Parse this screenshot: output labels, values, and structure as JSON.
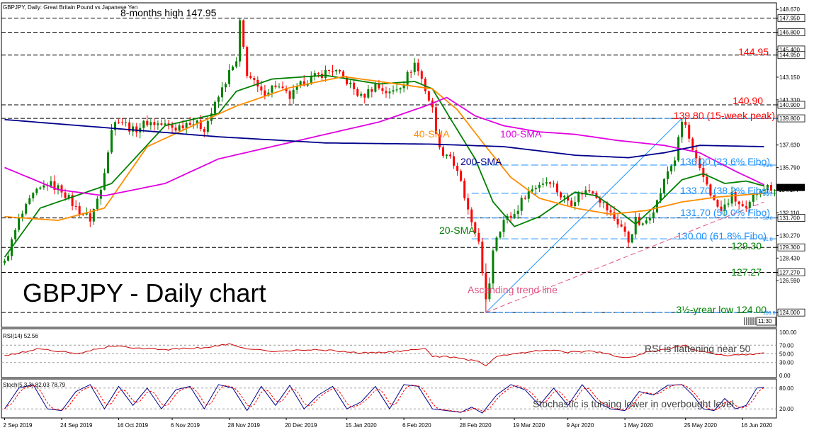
{
  "chart_data": {
    "type": "candlestick",
    "title": "GBPJPY, Daily:  Great Britain Pound vs Japanese Yen",
    "main_label": "GBPJPY - Daily chart",
    "y_range": [
      122.8,
      149.2
    ],
    "y_ticks": [
      148.67,
      147.95,
      146.8,
      145.4,
      144.95,
      143.15,
      141.31,
      140.9,
      139.8,
      137.63,
      135.79,
      134.177,
      132.11,
      131.7,
      130.27,
      129.3,
      128.43,
      127.27,
      126.59,
      124.0
    ],
    "y_tick_labels": [
      "148.670",
      "147.950",
      "146.800",
      "145.400",
      "144.950",
      "143.150",
      "141.310",
      "140.900",
      "139.800",
      "137.630",
      "135.790",
      "134.177",
      "132.110",
      "131.700",
      "130.270",
      "129.300",
      "128.430",
      "127.270",
      "126.590",
      "124.000"
    ],
    "price_box_label": "134.177",
    "x_labels": [
      "2 Sep 2019",
      "24 Sep 2019",
      "16 Oct 2019",
      "6 Nov 2019",
      "28 Nov 2019",
      "20 Dec 2019",
      "15 Jan 2020",
      "6 Feb 2020",
      "28 Feb 2020",
      "19 Mar 2020",
      "9 Apr 2020",
      "1 May 2020",
      "25 May 2020",
      "16 Jun 2020"
    ],
    "x_label_bars": [
      0,
      16,
      32,
      47,
      63,
      79,
      96,
      112,
      128,
      143,
      158,
      174,
      191,
      207
    ],
    "bar_count": 217,
    "anchors": [
      [
        0,
        128.0
      ],
      [
        4,
        131.5
      ],
      [
        8,
        133.5
      ],
      [
        12,
        134.5
      ],
      [
        16,
        134.0
      ],
      [
        20,
        132.5
      ],
      [
        24,
        131.6
      ],
      [
        27,
        134.0
      ],
      [
        30,
        139.0
      ],
      [
        32,
        139.8
      ],
      [
        36,
        138.8
      ],
      [
        40,
        139.5
      ],
      [
        44,
        139.3
      ],
      [
        48,
        139.0
      ],
      [
        52,
        139.6
      ],
      [
        56,
        139.0
      ],
      [
        60,
        141.5
      ],
      [
        63,
        143.5
      ],
      [
        65,
        144.3
      ],
      [
        66,
        147.5
      ],
      [
        68,
        143.5
      ],
      [
        72,
        141.8
      ],
      [
        76,
        142.5
      ],
      [
        80,
        141.5
      ],
      [
        84,
        142.8
      ],
      [
        88,
        143.3
      ],
      [
        92,
        143.8
      ],
      [
        96,
        142.8
      ],
      [
        100,
        141.5
      ],
      [
        104,
        142.5
      ],
      [
        108,
        141.8
      ],
      [
        112,
        142.8
      ],
      [
        115,
        144.3
      ],
      [
        117,
        143.0
      ],
      [
        120,
        140.5
      ],
      [
        122,
        137.2
      ],
      [
        125,
        136.8
      ],
      [
        128,
        134.5
      ],
      [
        131,
        131.0
      ],
      [
        133,
        130.0
      ],
      [
        134,
        127.0
      ],
      [
        135,
        124.8
      ],
      [
        136,
        126.5
      ],
      [
        137,
        129.2
      ],
      [
        138,
        130.3
      ],
      [
        140,
        131.5
      ],
      [
        143,
        132.0
      ],
      [
        146,
        133.6
      ],
      [
        150,
        134.5
      ],
      [
        153,
        134.8
      ],
      [
        156,
        133.5
      ],
      [
        159,
        133.0
      ],
      [
        162,
        133.8
      ],
      [
        165,
        134.0
      ],
      [
        168,
        132.8
      ],
      [
        170,
        132.0
      ],
      [
        173,
        131.0
      ],
      [
        175,
        129.8
      ],
      [
        177,
        131.5
      ],
      [
        179,
        131.0
      ],
      [
        181,
        132.0
      ],
      [
        183,
        133.0
      ],
      [
        186,
        135.5
      ],
      [
        188,
        136.5
      ],
      [
        190,
        139.5
      ],
      [
        191,
        139.2
      ],
      [
        193,
        137.0
      ],
      [
        195,
        135.5
      ],
      [
        197,
        134.5
      ],
      [
        199,
        133.0
      ],
      [
        201,
        132.2
      ],
      [
        204,
        133.5
      ],
      [
        206,
        132.8
      ],
      [
        208,
        132.2
      ],
      [
        210,
        133.4
      ],
      [
        212,
        134.2
      ],
      [
        213,
        134.2
      ]
    ],
    "series": [
      {
        "name": "20-SMA",
        "color": "#008000",
        "anchors": [
          [
            0,
            128.5
          ],
          [
            10,
            132.5
          ],
          [
            20,
            133.5
          ],
          [
            30,
            134.5
          ],
          [
            45,
            139.2
          ],
          [
            60,
            140.2
          ],
          [
            65,
            142.0
          ],
          [
            75,
            143.0
          ],
          [
            90,
            143.3
          ],
          [
            105,
            142.6
          ],
          [
            115,
            142.8
          ],
          [
            120,
            142.2
          ],
          [
            125,
            139.8
          ],
          [
            132,
            136.5
          ],
          [
            137,
            133.0
          ],
          [
            143,
            131.0
          ],
          [
            150,
            131.8
          ],
          [
            160,
            133.8
          ],
          [
            166,
            133.5
          ],
          [
            172,
            132.3
          ],
          [
            177,
            131.2
          ],
          [
            183,
            132.8
          ],
          [
            190,
            134.8
          ],
          [
            196,
            135.3
          ],
          [
            202,
            134.5
          ],
          [
            208,
            134.7
          ],
          [
            213,
            134.3
          ]
        ]
      },
      {
        "name": "40-SMA",
        "color": "#ff8c00",
        "anchors": [
          [
            0,
            131.8
          ],
          [
            15,
            131.5
          ],
          [
            28,
            132.5
          ],
          [
            40,
            137.5
          ],
          [
            55,
            139.5
          ],
          [
            65,
            140.8
          ],
          [
            80,
            142.3
          ],
          [
            95,
            143.2
          ],
          [
            110,
            142.6
          ],
          [
            120,
            142.2
          ],
          [
            127,
            140.5
          ],
          [
            135,
            137.5
          ],
          [
            142,
            135.0
          ],
          [
            150,
            133.3
          ],
          [
            160,
            132.5
          ],
          [
            170,
            132.0
          ],
          [
            180,
            132.3
          ],
          [
            190,
            133.0
          ],
          [
            200,
            133.4
          ],
          [
            213,
            133.7
          ]
        ]
      },
      {
        "name": "100-SMA",
        "color": "#e000e0",
        "anchors": [
          [
            0,
            135.8
          ],
          [
            15,
            134.0
          ],
          [
            28,
            133.5
          ],
          [
            45,
            134.5
          ],
          [
            60,
            136.5
          ],
          [
            75,
            137.5
          ],
          [
            90,
            138.5
          ],
          [
            105,
            139.5
          ],
          [
            118,
            140.8
          ],
          [
            124,
            141.5
          ],
          [
            132,
            140.0
          ],
          [
            140,
            139.2
          ],
          [
            150,
            138.7
          ],
          [
            160,
            138.5
          ],
          [
            172,
            138.0
          ],
          [
            185,
            137.6
          ],
          [
            195,
            137.0
          ],
          [
            205,
            135.5
          ],
          [
            213,
            134.4
          ]
        ]
      },
      {
        "name": "200-SMA",
        "color": "#00008b",
        "anchors": [
          [
            0,
            139.7
          ],
          [
            30,
            139.0
          ],
          [
            60,
            138.3
          ],
          [
            90,
            137.8
          ],
          [
            120,
            137.7
          ],
          [
            140,
            137.5
          ],
          [
            160,
            136.8
          ],
          [
            175,
            136.6
          ],
          [
            185,
            137.0
          ],
          [
            195,
            137.6
          ],
          [
            213,
            137.5
          ]
        ]
      }
    ],
    "annotations": [
      {
        "text": "8-months high 147.95",
        "color": "#000000"
      },
      {
        "text": "144.95",
        "color": "#ff0000"
      },
      {
        "text": "140.90",
        "color": "#ff0000"
      },
      {
        "text": "139.80 (15-week peak)",
        "color": "#ff0000"
      },
      {
        "text": "136.00 (23.6% Fibo)",
        "color": "#1e90ff"
      },
      {
        "text": "133.70 (38.2% Fibo)",
        "color": "#1e90ff"
      },
      {
        "text": "131.70 (50.0% Fibo)",
        "color": "#1e90ff"
      },
      {
        "text": "130.00 (61.8% Fibo)",
        "color": "#1e90ff"
      },
      {
        "text": "129.30",
        "color": "#008000"
      },
      {
        "text": "127.27",
        "color": "#008000"
      },
      {
        "text": "3½-yrear low 124.00",
        "color": "#008000"
      },
      {
        "text": "40-SMA",
        "color": "#ff8c00"
      },
      {
        "text": "100-SMA",
        "color": "#e000e0"
      },
      {
        "text": "200-SMA",
        "color": "#00008b"
      },
      {
        "text": "20-SMA",
        "color": "#008000"
      },
      {
        "text": "Ascending trend line",
        "color": "#e05080"
      }
    ],
    "fibo_small_labels": [
      "23.6",
      "38.2",
      "50.0",
      "61.8",
      "100.0"
    ],
    "time_box": "11:30",
    "rsi": {
      "label": "RSI(14) 52.56",
      "y_ticks": [
        "100.00",
        "70.00",
        "50.00",
        "30.00",
        "0.00"
      ],
      "annotation": "RSI is flattening near 50",
      "color": "#cc0000",
      "anchors": [
        [
          0,
          45
        ],
        [
          10,
          62
        ],
        [
          20,
          50
        ],
        [
          30,
          68
        ],
        [
          45,
          60
        ],
        [
          55,
          64
        ],
        [
          63,
          72
        ],
        [
          67,
          64
        ],
        [
          75,
          55
        ],
        [
          88,
          60
        ],
        [
          100,
          52
        ],
        [
          112,
          56
        ],
        [
          118,
          63
        ],
        [
          120,
          45
        ],
        [
          128,
          40
        ],
        [
          133,
          32
        ],
        [
          135,
          24
        ],
        [
          138,
          44
        ],
        [
          145,
          52
        ],
        [
          152,
          60
        ],
        [
          158,
          54
        ],
        [
          165,
          56
        ],
        [
          170,
          48
        ],
        [
          175,
          40
        ],
        [
          180,
          54
        ],
        [
          186,
          62
        ],
        [
          191,
          70
        ],
        [
          193,
          58
        ],
        [
          198,
          52
        ],
        [
          203,
          45
        ],
        [
          208,
          48
        ],
        [
          213,
          53
        ]
      ]
    },
    "stoch": {
      "label": "Stoch(5,3,3) 82.03 78.79",
      "y_ticks": [
        "80.00",
        "20.00"
      ],
      "annotation": "Stochastic is turning lower in overbought level",
      "k_color": "#00008b",
      "d_color": "#ff0000",
      "anchors": [
        [
          0,
          20
        ],
        [
          4,
          80
        ],
        [
          8,
          90
        ],
        [
          12,
          20
        ],
        [
          16,
          15
        ],
        [
          20,
          70
        ],
        [
          24,
          90
        ],
        [
          28,
          20
        ],
        [
          32,
          85
        ],
        [
          36,
          30
        ],
        [
          40,
          80
        ],
        [
          44,
          20
        ],
        [
          48,
          75
        ],
        [
          52,
          85
        ],
        [
          56,
          20
        ],
        [
          60,
          90
        ],
        [
          64,
          80
        ],
        [
          68,
          15
        ],
        [
          72,
          85
        ],
        [
          76,
          30
        ],
        [
          80,
          88
        ],
        [
          84,
          20
        ],
        [
          88,
          60
        ],
        [
          92,
          85
        ],
        [
          96,
          20
        ],
        [
          100,
          40
        ],
        [
          104,
          85
        ],
        [
          108,
          20
        ],
        [
          112,
          90
        ],
        [
          116,
          85
        ],
        [
          120,
          20
        ],
        [
          124,
          15
        ],
        [
          128,
          10
        ],
        [
          131,
          25
        ],
        [
          134,
          8
        ],
        [
          138,
          60
        ],
        [
          142,
          90
        ],
        [
          146,
          75
        ],
        [
          150,
          30
        ],
        [
          154,
          80
        ],
        [
          158,
          30
        ],
        [
          162,
          90
        ],
        [
          166,
          40
        ],
        [
          170,
          20
        ],
        [
          174,
          15
        ],
        [
          178,
          70
        ],
        [
          182,
          60
        ],
        [
          186,
          88
        ],
        [
          190,
          90
        ],
        [
          193,
          60
        ],
        [
          196,
          20
        ],
        [
          199,
          15
        ],
        [
          202,
          50
        ],
        [
          205,
          20
        ],
        [
          208,
          30
        ],
        [
          211,
          80
        ],
        [
          213,
          82
        ]
      ]
    }
  }
}
